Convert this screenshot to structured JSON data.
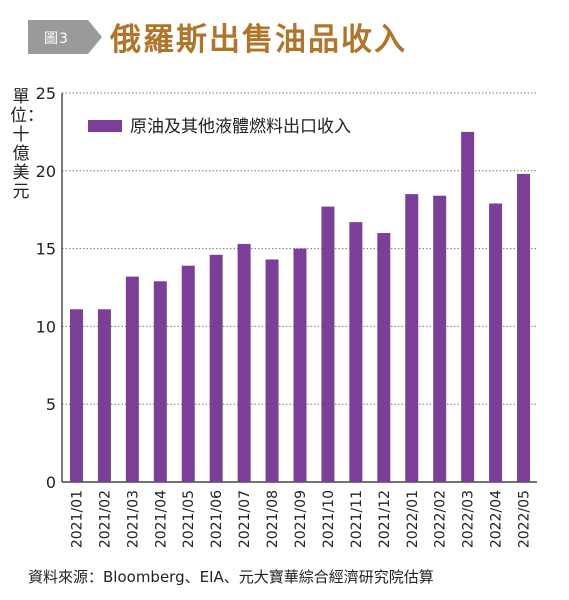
{
  "header": {
    "figure_badge": "圖3",
    "title": "俄羅斯出售油品收入"
  },
  "chart_data": {
    "type": "bar",
    "title": "俄羅斯出售油品收入",
    "ylabel": "單位：十億美元",
    "xlabel": "",
    "ylim": [
      0,
      25
    ],
    "yticks": [
      0,
      5,
      10,
      15,
      20,
      25
    ],
    "grid": true,
    "legend_position": "top-left",
    "categories": [
      "2021/01",
      "2021/02",
      "2021/03",
      "2021/04",
      "2021/05",
      "2021/06",
      "2021/07",
      "2021/08",
      "2021/09",
      "2021/10",
      "2021/11",
      "2021/12",
      "2022/01",
      "2022/02",
      "2022/03",
      "2022/04",
      "2022/05"
    ],
    "series": [
      {
        "name": "原油及其他液體燃料出口收入",
        "color": "#7b3f98",
        "values": [
          11.1,
          11.1,
          13.2,
          12.9,
          13.9,
          14.6,
          15.3,
          14.3,
          15.0,
          17.7,
          16.7,
          16.0,
          18.5,
          18.4,
          22.5,
          17.9,
          19.8
        ]
      }
    ]
  },
  "footer": {
    "source": "資料來源：Bloomberg、EIA、元大寶華綜合經濟研究院估算"
  },
  "colors": {
    "title": "#b0752a",
    "bar": "#7b3f98",
    "badge": "#9a9a9a"
  }
}
